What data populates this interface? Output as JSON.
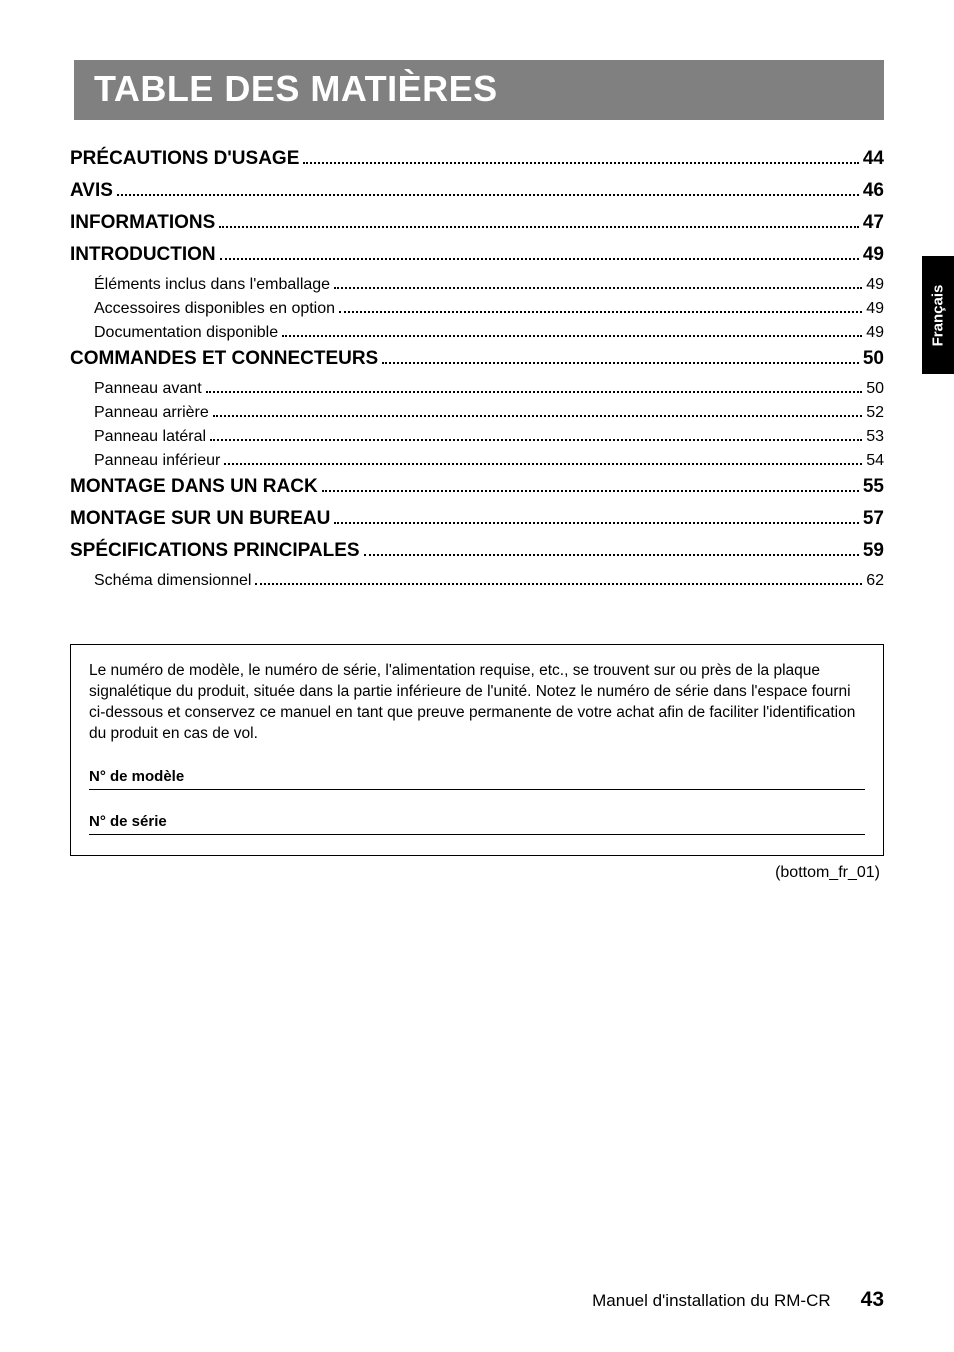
{
  "title": "TABLE DES MATIÈRES",
  "side_tab": "Français",
  "toc": [
    {
      "level": 1,
      "label": "PRÉCAUTIONS D'USAGE",
      "page": "44"
    },
    {
      "level": 1,
      "label": "AVIS",
      "page": "46"
    },
    {
      "level": 1,
      "label": "INFORMATIONS",
      "page": "47"
    },
    {
      "level": 1,
      "label": "INTRODUCTION",
      "page": "49"
    },
    {
      "level": 2,
      "label": "Éléments inclus dans l'emballage",
      "page": "49"
    },
    {
      "level": 2,
      "label": "Accessoires disponibles en option",
      "page": "49"
    },
    {
      "level": 2,
      "label": "Documentation disponible",
      "page": "49"
    },
    {
      "level": 1,
      "label": "COMMANDES ET CONNECTEURS",
      "page": "50"
    },
    {
      "level": 2,
      "label": "Panneau avant",
      "page": "50"
    },
    {
      "level": 2,
      "label": "Panneau arrière",
      "page": "52"
    },
    {
      "level": 2,
      "label": "Panneau latéral",
      "page": "53"
    },
    {
      "level": 2,
      "label": "Panneau inférieur",
      "page": "54"
    },
    {
      "level": 1,
      "label": "MONTAGE DANS UN RACK",
      "page": "55"
    },
    {
      "level": 1,
      "label": "MONTAGE SUR UN BUREAU",
      "page": "57"
    },
    {
      "level": 1,
      "label": "SPÉCIFICATIONS PRINCIPALES",
      "page": "59"
    },
    {
      "level": 2,
      "label": "Schéma dimensionnel",
      "page": "62"
    }
  ],
  "notice": {
    "text": "Le numéro de modèle, le numéro de série, l'alimentation requise, etc., se trouvent sur ou près de la plaque signalétique du produit, située dans la partie inférieure de l'unité. Notez le numéro de série dans l'espace fourni ci-dessous et conservez ce manuel en tant que preuve permanente de votre achat afin de faciliter l'identification du produit en cas de vol.",
    "model_label": "N° de modèle",
    "serial_label": "N° de série"
  },
  "bottom_ref": "(bottom_fr_01)",
  "footer_text": "Manuel d'installation du RM-CR",
  "footer_page": "43",
  "colors": {
    "title_bg": "#808080",
    "title_fg": "#ffffff",
    "side_bg": "#000000",
    "side_fg": "#ffffff",
    "text": "#000000",
    "page_bg": "#ffffff"
  }
}
